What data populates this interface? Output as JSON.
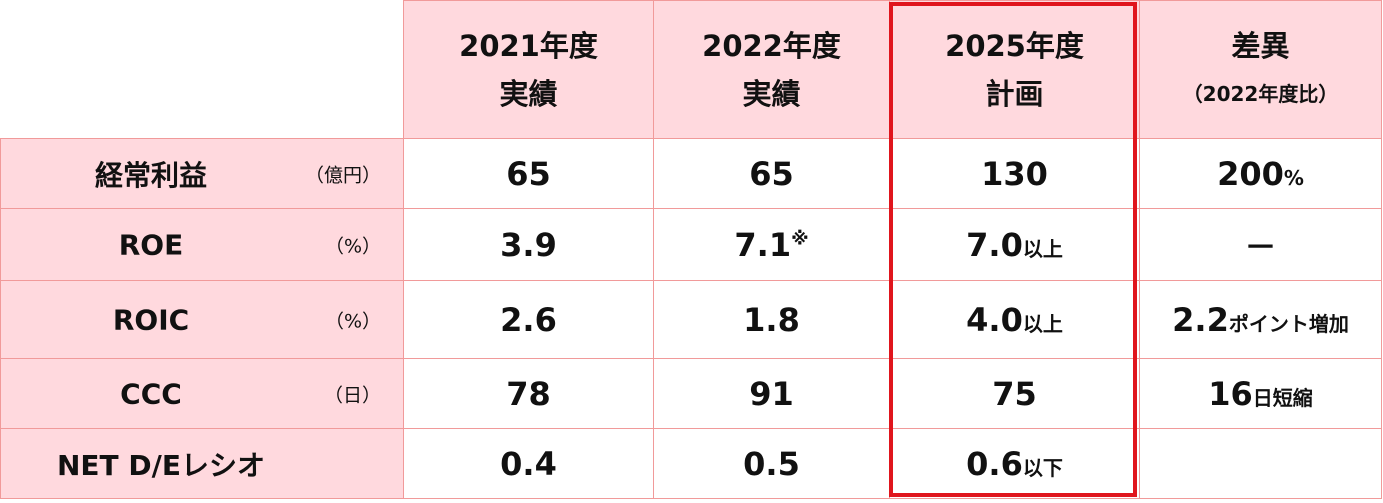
{
  "columns": [
    {
      "line1": "2021年度",
      "line2": "実績"
    },
    {
      "line1": "2022年度",
      "line2": "実績"
    },
    {
      "line1": "2025年度",
      "line2": "計画"
    },
    {
      "line1": "差異",
      "line2": "（2022年度比）"
    }
  ],
  "rows": [
    {
      "label": "経常利益",
      "unit": "（億円）",
      "v2021": "65",
      "v2022": "65",
      "v2022_note": "",
      "v2025": "130",
      "v2025_suffix": "",
      "diff": "200",
      "diff_suffix": "%"
    },
    {
      "label": "ROE",
      "unit": "（%）",
      "v2021": "3.9",
      "v2022": "7.1",
      "v2022_note": "※",
      "v2025": "7.0",
      "v2025_suffix": "以上",
      "diff": "－",
      "diff_suffix": ""
    },
    {
      "label": "ROIC",
      "unit": "（%）",
      "v2021": "2.6",
      "v2022": "1.8",
      "v2022_note": "",
      "v2025": "4.0",
      "v2025_suffix": "以上",
      "diff": "2.2",
      "diff_suffix": "ポイント増加"
    },
    {
      "label": "CCC",
      "unit": "（日）",
      "v2021": "78",
      "v2022": "91",
      "v2022_note": "",
      "v2025": "75",
      "v2025_suffix": "",
      "diff": "16",
      "diff_suffix": "日短縮"
    },
    {
      "label": "NET D/Eレシオ",
      "unit": "",
      "v2021": "0.4",
      "v2022": "0.5",
      "v2022_note": "",
      "v2025": "0.6",
      "v2025_suffix": "以下",
      "diff": "",
      "diff_suffix": ""
    }
  ],
  "colors": {
    "header_bg": "#ffd9de",
    "grid": "#f19a9a",
    "plan_border": "#e0151d"
  }
}
